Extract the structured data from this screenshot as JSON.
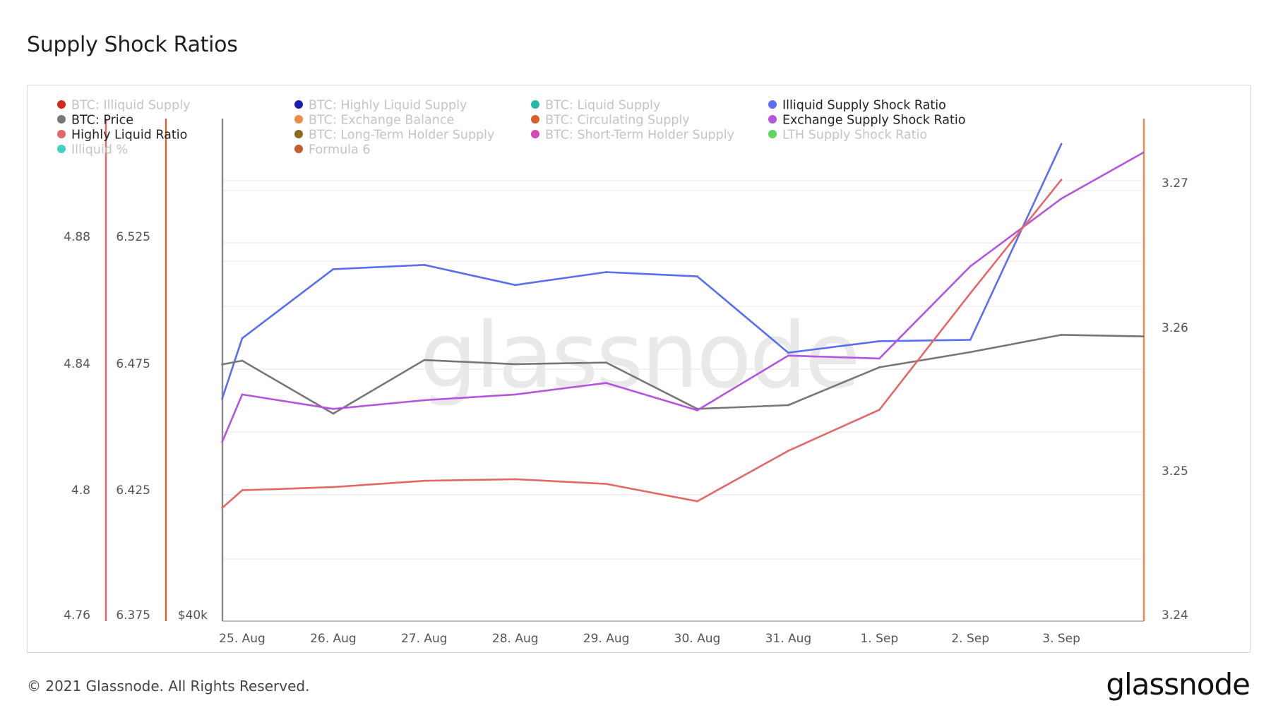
{
  "title": "Supply Shock Ratios",
  "footer": {
    "copyright": "© 2021 Glassnode. All Rights Reserved.",
    "brand": "glassnode"
  },
  "watermark": "glassnode",
  "legend": [
    {
      "label": "BTC: Illiquid Supply",
      "color": "#d7281e",
      "active": false
    },
    {
      "label": "BTC: Highly Liquid Supply",
      "color": "#1c1cb8",
      "active": false
    },
    {
      "label": "BTC: Liquid Supply",
      "color": "#27b8a8",
      "active": false
    },
    {
      "label": "Illiquid Supply Shock Ratio",
      "color": "#5b6ef0",
      "active": true
    },
    {
      "label": "BTC: Price",
      "color": "#777777",
      "active": true
    },
    {
      "label": "BTC: Exchange Balance",
      "color": "#f08a47",
      "active": false
    },
    {
      "label": "BTC: Circulating Supply",
      "color": "#d95f2a",
      "active": false
    },
    {
      "label": "Exchange Supply Shock Ratio",
      "color": "#b455e0",
      "active": true
    },
    {
      "label": "Highly Liquid Ratio",
      "color": "#e46868",
      "active": true
    },
    {
      "label": "BTC: Long-Term Holder Supply",
      "color": "#8a6d1a",
      "active": false
    },
    {
      "label": "BTC: Short-Term Holder Supply",
      "color": "#d64ab5",
      "active": false
    },
    {
      "label": "LTH Supply Shock Ratio",
      "color": "#5ed65e",
      "active": false
    },
    {
      "label": "Illiquid %",
      "color": "#3fd3c0",
      "active": false
    },
    {
      "label": "Formula 6",
      "color": "#c95a2a",
      "active": false
    }
  ],
  "axes": {
    "axis1": {
      "color": "#e46868",
      "ticks": [
        "4.88",
        "4.84",
        "4.8",
        "4.76"
      ]
    },
    "axis2": {
      "color": "#d9622b",
      "ticks": [
        "6.525",
        "6.475",
        "6.425",
        "6.375"
      ]
    },
    "axis3": {
      "color": "#888888",
      "ticks": [
        "$40k"
      ]
    },
    "right": {
      "color": "#f08a47",
      "ticks": [
        "3.27",
        "3.26",
        "3.25",
        "3.24"
      ]
    }
  },
  "chart_data": {
    "type": "line",
    "title": "Supply Shock Ratios",
    "x": [
      "25. Aug",
      "26. Aug",
      "27. Aug",
      "28. Aug",
      "29. Aug",
      "30. Aug",
      "31. Aug",
      "1. Sep",
      "2. Sep",
      "3. Sep"
    ],
    "grid": true,
    "series": [
      {
        "name": "Illiquid Supply Shock Ratio",
        "color": "#5b6ef0",
        "axis": "right",
        "points": [
          [
            -0.22,
            3.255
          ],
          [
            0,
            3.2592
          ],
          [
            1,
            3.264
          ],
          [
            2,
            3.2643
          ],
          [
            3,
            3.2629
          ],
          [
            4,
            3.2638
          ],
          [
            5,
            3.2635
          ],
          [
            6,
            3.2582
          ],
          [
            7,
            3.259
          ],
          [
            8,
            3.2591
          ],
          [
            9,
            3.2727
          ]
        ]
      },
      {
        "name": "BTC: Price",
        "color": "#777777",
        "axis": "left",
        "points": [
          [
            -0.22,
            4.8394
          ],
          [
            0,
            4.8406
          ],
          [
            1,
            4.8238
          ],
          [
            2,
            4.8408
          ],
          [
            3,
            4.8395
          ],
          [
            4,
            4.84
          ],
          [
            5,
            4.8253
          ],
          [
            6,
            4.8265
          ],
          [
            7,
            4.8385
          ],
          [
            8,
            4.8433
          ],
          [
            9,
            4.8488
          ],
          [
            9.9,
            4.8483
          ]
        ]
      },
      {
        "name": "Exchange Supply Shock Ratio",
        "color": "#b455e0",
        "axis": "right",
        "points": [
          [
            -0.22,
            3.252
          ],
          [
            0,
            3.2553
          ],
          [
            1,
            3.2543
          ],
          [
            2,
            3.2549
          ],
          [
            3,
            3.2553
          ],
          [
            4,
            3.2561
          ],
          [
            5,
            3.2542
          ],
          [
            6,
            3.258
          ],
          [
            7,
            3.2578
          ],
          [
            8,
            3.2642
          ],
          [
            9,
            3.2689
          ],
          [
            9.9,
            3.2721
          ]
        ]
      },
      {
        "name": "Highly Liquid Ratio",
        "color": "#e46868",
        "axis": "left",
        "points": [
          [
            -0.22,
            4.7939
          ],
          [
            0,
            4.7995
          ],
          [
            1,
            4.8005
          ],
          [
            2,
            4.8025
          ],
          [
            3,
            4.803
          ],
          [
            4,
            4.8015
          ],
          [
            5,
            4.796
          ],
          [
            6,
            4.812
          ],
          [
            7,
            4.825
          ],
          [
            8,
            4.862
          ],
          [
            9,
            4.898
          ]
        ]
      }
    ]
  }
}
